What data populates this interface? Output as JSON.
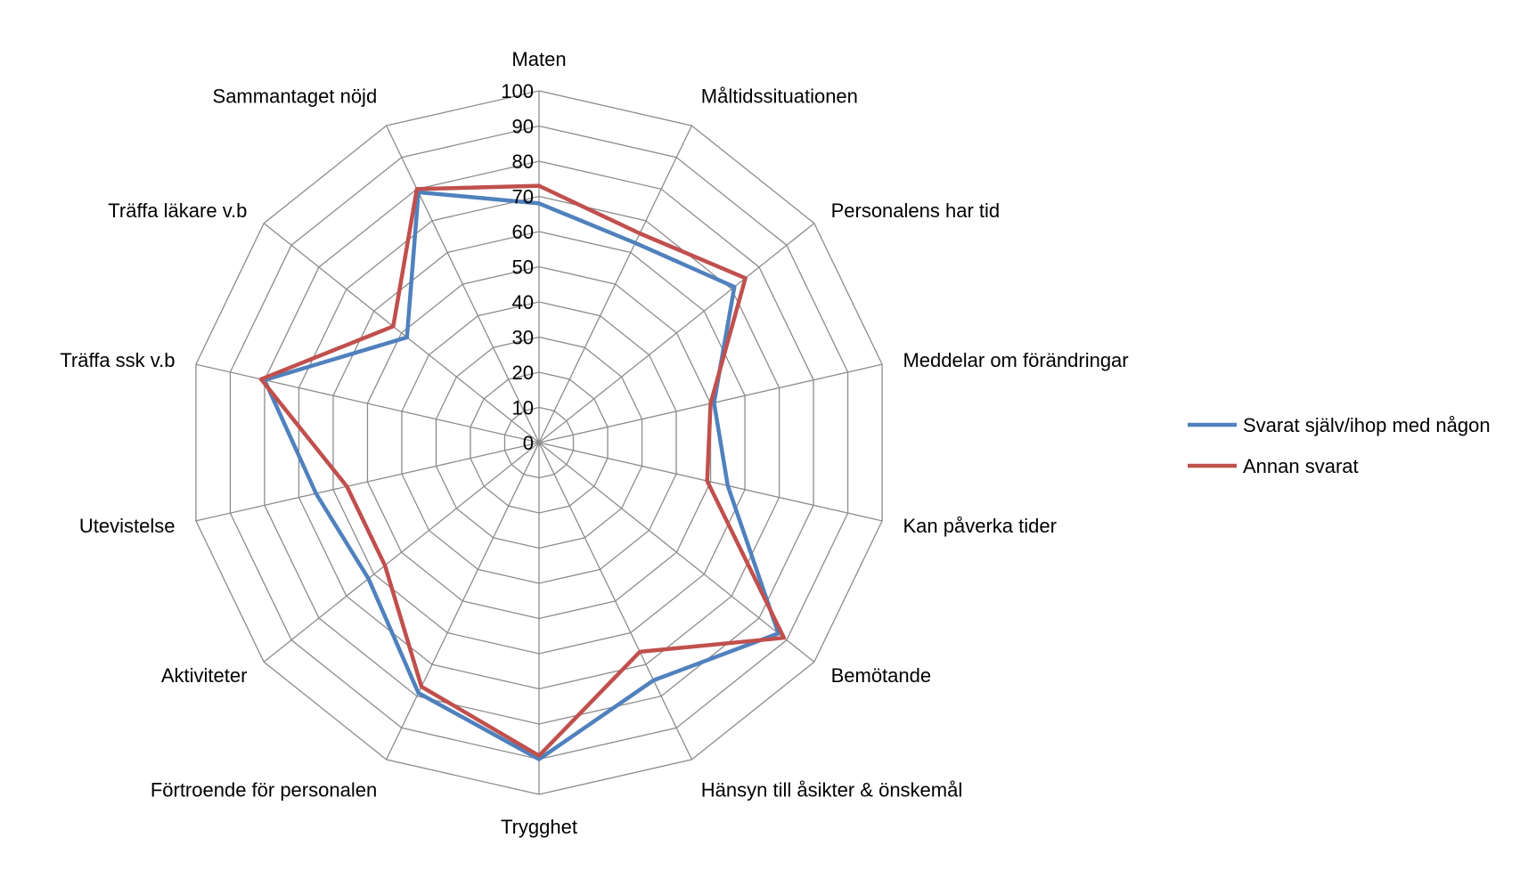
{
  "chart_data": {
    "type": "radar",
    "categories": [
      "Maten",
      "Måltidssituationen",
      "Personalens har tid",
      "Meddelar om förändringar",
      "Kan påverka tider",
      "Bemötande",
      "Hänsyn till åsikter & önskemål",
      "Trygghet",
      "Förtroende för personalen",
      "Aktiviteter",
      "Utevistelse",
      "Träffa ssk v.b",
      "Träffa läkare v.b",
      "Sammantaget nöjd"
    ],
    "ticks": [
      "0",
      "10",
      "20",
      "30",
      "40",
      "50",
      "60",
      "70",
      "80",
      "90",
      "100"
    ],
    "rlim": [
      0,
      100
    ],
    "grid": true,
    "legend_position": "right",
    "series": [
      {
        "name": "Svarat själv/ihop med någon",
        "color": "#4F81BD",
        "values": [
          68,
          63,
          71,
          51,
          55,
          87,
          75,
          90,
          79,
          62,
          65,
          80,
          48,
          79
        ]
      },
      {
        "name": "Annan svarat",
        "color": "#C0504D",
        "values": [
          73,
          66,
          75,
          50,
          49,
          89,
          66,
          89,
          77,
          56,
          56,
          81,
          53,
          80
        ]
      }
    ]
  }
}
